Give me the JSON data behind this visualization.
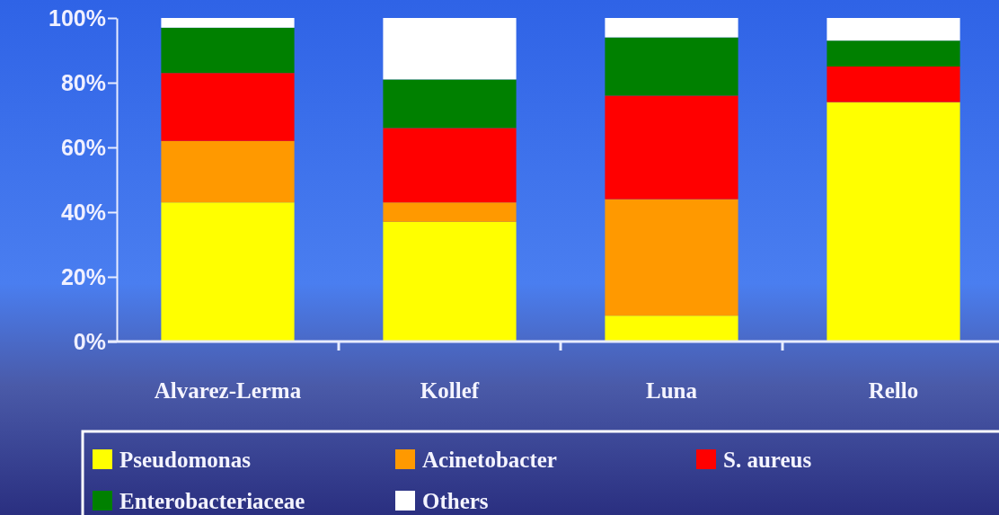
{
  "chart_data": {
    "type": "bar",
    "stacked": true,
    "categories": [
      "Alvarez-Lerma",
      "Kollef",
      "Luna",
      "Rello"
    ],
    "series": [
      {
        "name": "Pseudomonas",
        "color": "#ffff00",
        "values": [
          43,
          37,
          8,
          74
        ]
      },
      {
        "name": "Acinetobacter",
        "color": "#ff9900",
        "values": [
          19,
          6,
          36,
          0
        ]
      },
      {
        "name": "S. aureus",
        "color": "#ff0000",
        "values": [
          21,
          23,
          32,
          11
        ]
      },
      {
        "name": "Enterobacteriaceae",
        "color": "#008000",
        "values": [
          14,
          15,
          18,
          8
        ]
      },
      {
        "name": "Others",
        "color": "#ffffff",
        "values": [
          3,
          19,
          6,
          7
        ]
      }
    ],
    "ylim": [
      0,
      100
    ],
    "yticks": [
      {
        "value": 0,
        "label": "0%"
      },
      {
        "value": 20,
        "label": "20%"
      },
      {
        "value": 40,
        "label": "40%"
      },
      {
        "value": 60,
        "label": "60%"
      },
      {
        "value": 80,
        "label": "80%"
      },
      {
        "value": 100,
        "label": "100%"
      }
    ],
    "grid": false,
    "legend": "bottom"
  }
}
